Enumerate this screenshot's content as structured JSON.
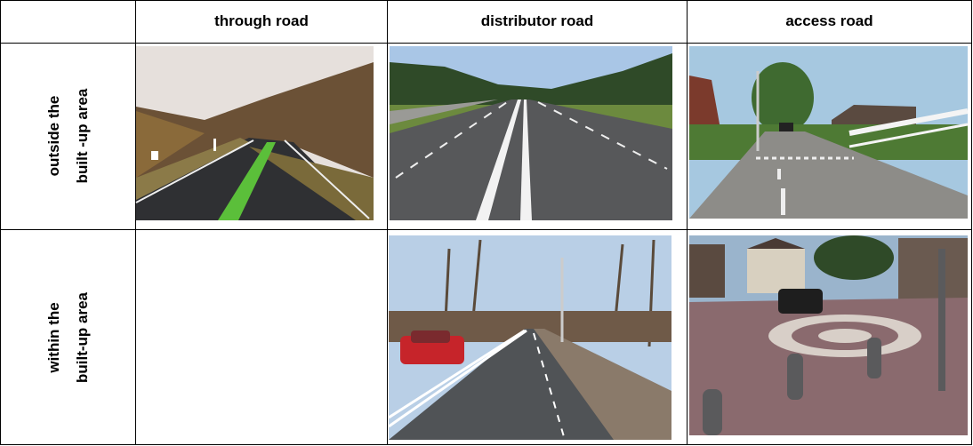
{
  "table": {
    "header": [
      "through road",
      "distributor road",
      "access road"
    ],
    "rows": [
      {
        "label": [
          "outside the",
          "built -up area"
        ]
      },
      {
        "label": [
          "within the",
          "built-up area"
        ]
      }
    ]
  }
}
